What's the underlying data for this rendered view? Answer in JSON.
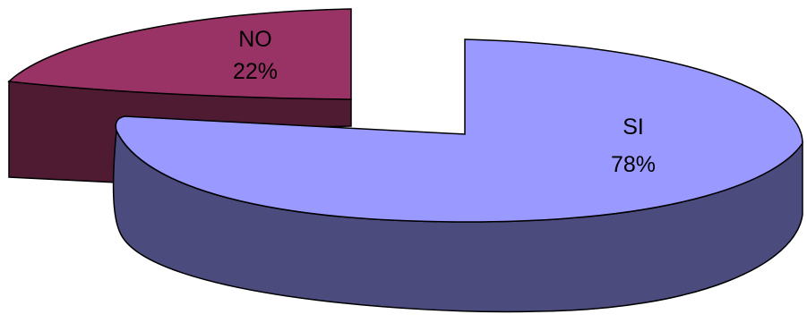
{
  "chart_data": {
    "type": "pie",
    "style": "3d-exploded",
    "slices": [
      {
        "label": "SI",
        "value": 78,
        "value_label": "78%",
        "top_color": "#9999FF",
        "side_color": "#4B4B7E"
      },
      {
        "label": "NO",
        "value": 22,
        "value_label": "22%",
        "top_color": "#993366",
        "side_color": "#4E1B33"
      }
    ]
  }
}
